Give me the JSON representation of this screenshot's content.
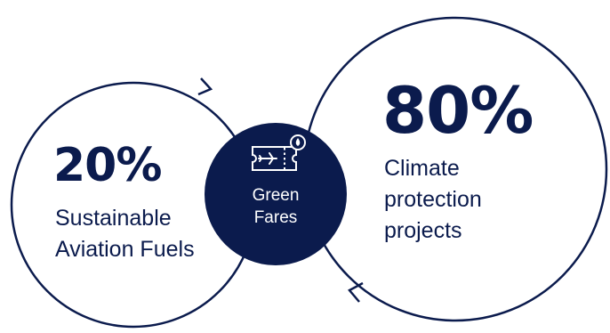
{
  "left": {
    "percent": "20%",
    "description_lines": [
      "Sustainable",
      "Aviation Fuels"
    ]
  },
  "right": {
    "percent": "80%",
    "description_lines": [
      "Climate",
      "protection",
      "projects"
    ]
  },
  "center": {
    "icon": "green-fare-ticket-icon",
    "label_lines": [
      "Green",
      "Fares"
    ]
  },
  "colors": {
    "navy": "#0b1b4d",
    "white": "#ffffff"
  }
}
